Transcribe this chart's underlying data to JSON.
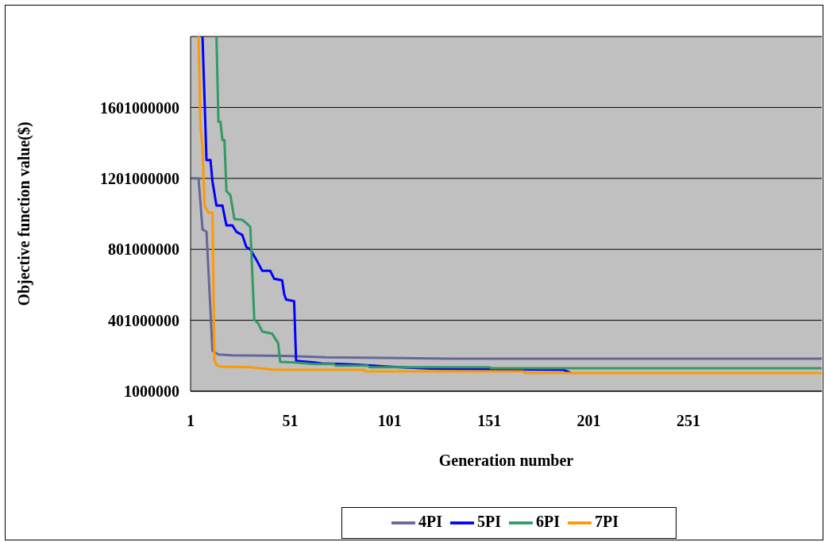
{
  "chart_data": {
    "type": "line",
    "xlabel": "Generation number",
    "ylabel": "Objective function value($)",
    "xlim": [
      1,
      318
    ],
    "xticks": [
      1,
      51,
      101,
      151,
      201,
      251
    ],
    "ylim": [
      1000000,
      2001000000
    ],
    "yticks": [
      1000000,
      401000000,
      801000000,
      1201000000,
      1601000000
    ],
    "grid": "y",
    "legend": "bottom",
    "marker": "none",
    "line_style": "solid",
    "series": [
      {
        "name": "4PI",
        "color": "#666699",
        "x": [
          1,
          5,
          7,
          9,
          12,
          15,
          22,
          49,
          69,
          131,
          318
        ],
        "values": [
          1201000000,
          1201000000,
          913000000,
          900000000,
          229000000,
          208000000,
          203000000,
          200000000,
          192000000,
          185000000,
          185000000
        ]
      },
      {
        "name": "5PI",
        "color": "#0000ff",
        "x": [
          7,
          9,
          11,
          12,
          14,
          17,
          19,
          22,
          24,
          27,
          29,
          31,
          34,
          37,
          41,
          43,
          47,
          48,
          49,
          53,
          54,
          63,
          67,
          80,
          88,
          100,
          124,
          188,
          192
        ],
        "values": [
          2001000000,
          1304000000,
          1304000000,
          1183000000,
          1048000000,
          1048000000,
          936000000,
          936000000,
          900000000,
          882000000,
          814000000,
          801000000,
          743000000,
          680000000,
          680000000,
          635000000,
          626000000,
          549000000,
          518000000,
          509000000,
          172000000,
          163000000,
          158000000,
          153000000,
          149000000,
          140000000,
          127000000,
          122000000,
          104000000
        ]
      },
      {
        "name": "6PI",
        "color": "#339966",
        "x": [
          14,
          15,
          16,
          17,
          18,
          19,
          21,
          23,
          27,
          29,
          31,
          33,
          35,
          37,
          42,
          45,
          46,
          53,
          63,
          73,
          74,
          90,
          91,
          151,
          152,
          318
        ],
        "values": [
          2001000000,
          1520000000,
          1520000000,
          1417000000,
          1417000000,
          1129000000,
          1107000000,
          972000000,
          967000000,
          949000000,
          927000000,
          405000000,
          383000000,
          338000000,
          325000000,
          271000000,
          167000000,
          163000000,
          154000000,
          154000000,
          145000000,
          145000000,
          136000000,
          136000000,
          131000000,
          131000000
        ]
      },
      {
        "name": "7PI",
        "color": "#ff9900",
        "x": [
          5,
          6,
          7,
          8,
          10,
          12,
          13,
          14,
          16,
          31,
          43,
          88,
          89,
          168,
          169,
          318
        ],
        "values": [
          2001000000,
          1484000000,
          1376000000,
          1048000000,
          1008000000,
          1008000000,
          181000000,
          149000000,
          140000000,
          136000000,
          122000000,
          122000000,
          113000000,
          113000000,
          104000000,
          104000000
        ]
      }
    ]
  }
}
